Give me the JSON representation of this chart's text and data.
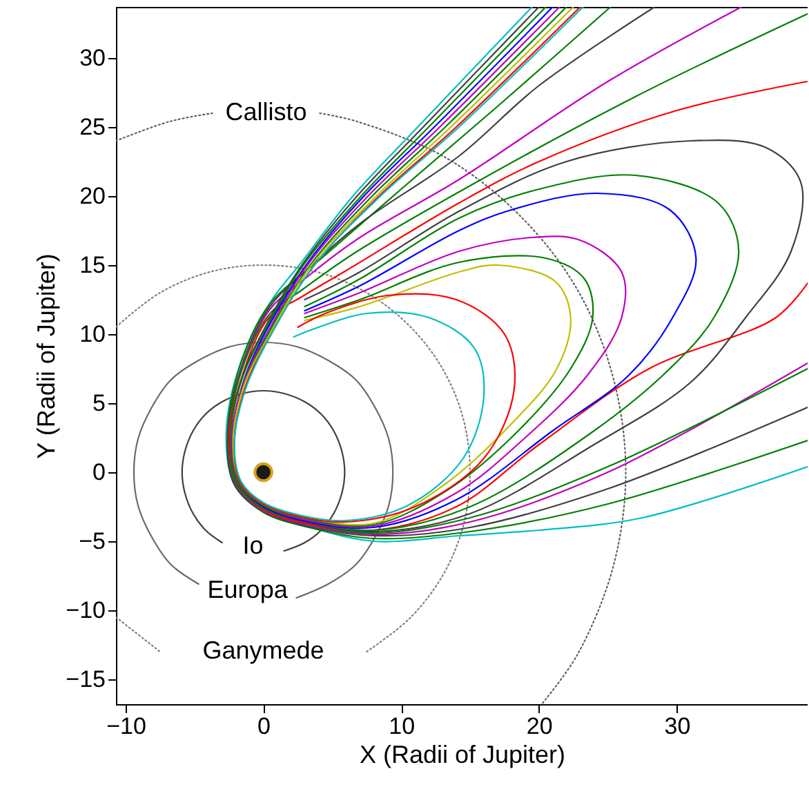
{
  "chart_data": {
    "type": "line",
    "xlabel": "X (Radii of Jupiter)",
    "ylabel": "Y (Radii of Jupiter)",
    "xlim": [
      -10.7,
      39.5
    ],
    "ylim": [
      -16.8,
      33.7
    ],
    "xticks": [
      -10,
      0,
      10,
      20,
      30
    ],
    "yticks": [
      -15,
      -10,
      -5,
      0,
      5,
      10,
      15,
      20,
      25,
      30
    ],
    "grid": false,
    "series": [
      {
        "name": "Io",
        "color": "#404040",
        "x": [
          1.5,
          3,
          4.2,
          5.1,
          5.7,
          5.9,
          5.7,
          5.1,
          4.2,
          3,
          1.5,
          0,
          -1.5,
          -3,
          -4.2,
          -5.1,
          -5.7,
          -5.9,
          -5.7,
          -5.1,
          -4.2,
          -3
        ],
        "values": [
          -5.7,
          -5.1,
          -4.2,
          -3,
          -1.5,
          0,
          1.5,
          3,
          4.2,
          5.1,
          5.7,
          5.9,
          5.7,
          5.1,
          4.2,
          3,
          1.5,
          0,
          -1.5,
          -3,
          -4.2,
          -5.1
        ]
      },
      {
        "name": "Europa",
        "color": "#6a6a6a",
        "x": [
          2.4,
          4.7,
          6.7,
          8.1,
          9.1,
          9.4,
          9.1,
          8.1,
          6.7,
          4.7,
          2.4,
          0,
          -2.4,
          -4.7,
          -6.7,
          -8.1,
          -9.1,
          -9.4,
          -9.1,
          -8.1,
          -6.7,
          -4.7
        ],
        "values": [
          -9.1,
          -8.1,
          -6.7,
          -4.7,
          -2.4,
          0,
          2.4,
          4.7,
          6.7,
          8.1,
          9.1,
          9.4,
          9.1,
          8.1,
          6.7,
          4.7,
          2.4,
          0,
          -2.4,
          -4.7,
          -6.7,
          -8.1
        ]
      },
      {
        "name": "Ganymede",
        "color": "#808080",
        "line_style": "dotted",
        "x": [
          -10.7,
          -7.5,
          null,
          7.5,
          10.6,
          13,
          14.5,
          15,
          14.5,
          13,
          10.6,
          7.5,
          3.9,
          0,
          -3.9,
          -7.5,
          -10.6,
          -10.7
        ],
        "values": [
          -10.5,
          -13,
          null,
          -13,
          -10.6,
          -7.5,
          -3.9,
          0,
          3.9,
          7.5,
          10.6,
          13,
          14.5,
          15,
          14.5,
          13,
          10.6,
          10.5
        ]
      },
      {
        "name": "Callisto",
        "color": "#606060",
        "line_style": "dotted",
        "x": [
          -10.7,
          -6.8,
          -3.7,
          null,
          4.1,
          6.8,
          13.2,
          18.6,
          22.8,
          25.4,
          26.3,
          25.4,
          22.8,
          20.2
        ],
        "values": [
          24,
          25.4,
          26,
          null,
          26,
          25.4,
          22.8,
          18.6,
          13.2,
          6.8,
          0,
          -6.8,
          -13.2,
          -16.8
        ]
      },
      {
        "color": "#00bfbf",
        "x": [
          19.5,
          11.2,
          6.5,
          2.6,
          0.5,
          -1.7,
          -2.7,
          -2.1,
          0,
          3.4,
          8,
          14.2,
          20,
          27.5,
          39.5
        ],
        "values": [
          33.7,
          25,
          20,
          15,
          12.3,
          7.8,
          2.8,
          -0.9,
          -2.9,
          -4,
          -5,
          -4.6,
          -4.2,
          -3.3,
          0.4
        ]
      },
      {
        "color": "#008000",
        "x": [
          25.2,
          17,
          10,
          4,
          0.4,
          -1.7,
          -2.6,
          -2.1,
          0,
          3.3,
          8,
          15,
          25,
          39.5
        ],
        "values": [
          33.7,
          26.5,
          20.5,
          15.3,
          12.1,
          7.7,
          2.8,
          -0.9,
          -2.9,
          -4,
          -4.8,
          -4.3,
          -2.3,
          2.3
        ]
      },
      {
        "color": "#404040",
        "x": [
          28.4,
          20,
          14.2,
          7,
          3,
          0.4,
          -1.6,
          -2.6,
          -2.1,
          0,
          3.2,
          8,
          15,
          25,
          39.5
        ],
        "values": [
          33.7,
          28,
          22.9,
          18,
          14.5,
          11.9,
          7.6,
          2.7,
          -0.9,
          -2.8,
          -3.9,
          -4.6,
          -4,
          -1.2,
          4.7
        ]
      },
      {
        "color": "#bf00bf",
        "x": [
          34.7,
          25,
          14.2,
          7,
          3,
          0.4,
          -1.6,
          -2.5,
          -2,
          0,
          3.2,
          8,
          15,
          25,
          39.5
        ],
        "values": [
          33.7,
          28.3,
          21.2,
          17,
          14,
          11.7,
          7.4,
          2.7,
          -0.9,
          -2.8,
          -3.8,
          -4.5,
          -3.6,
          0,
          7.9
        ]
      },
      {
        "color": "#008000",
        "x": [
          39.5,
          27,
          14.2,
          6.5,
          2.8,
          0.4,
          -1.6,
          -2.5,
          -2,
          0,
          3.1,
          8,
          15,
          25,
          39.5
        ],
        "values": [
          33.2,
          27.2,
          20.3,
          15.8,
          13.2,
          11.4,
          7.3,
          2.6,
          -0.8,
          -2.7,
          -3.7,
          -4.4,
          -3.3,
          0.4,
          7.5
        ]
      },
      {
        "color": "#ff0000",
        "x": [
          39.5,
          30,
          20,
          14.2,
          6,
          2.6,
          0.4,
          -1.5,
          -2.5,
          -1.9,
          0,
          3.1,
          8,
          14,
          20,
          28,
          37.2,
          39.5
        ],
        "values": [
          28.3,
          26.2,
          22.5,
          19.5,
          14.6,
          12.6,
          11.2,
          7.1,
          2.6,
          -0.8,
          -2.7,
          -3.7,
          -4.2,
          -2.5,
          2,
          7.5,
          11.2,
          13.7
        ]
      },
      {
        "color": "#404040",
        "x": [
          20,
          11.6,
          6.8,
          2.8,
          0.4,
          -1.5,
          -2.4,
          -1.9,
          0,
          3,
          8,
          15,
          24,
          31,
          35,
          38.3,
          39,
          36.5,
          31,
          22,
          14.2,
          7,
          3
        ],
        "values": [
          33.7,
          25,
          20,
          15,
          11,
          7,
          2.5,
          -0.8,
          -2.6,
          -3.6,
          -4.3,
          -3,
          2,
          6.5,
          11.2,
          16,
          21,
          23.5,
          24,
          22.5,
          18.9,
          14.5,
          12.5
        ]
      },
      {
        "color": "#008000",
        "x": [
          20.5,
          12,
          7.1,
          2.9,
          0.4,
          -1.5,
          -2.4,
          -1.9,
          0,
          2.9,
          8,
          15,
          24,
          29.5,
          32.7,
          34.5,
          33,
          27,
          20,
          14.2,
          7,
          3
        ],
        "values": [
          33.7,
          25,
          20,
          15,
          10.8,
          6.9,
          2.5,
          -0.8,
          -2.6,
          -3.5,
          -4.2,
          -2.5,
          3,
          7.5,
          11.2,
          16,
          19.5,
          21.5,
          20.5,
          18.4,
          14,
          12
        ]
      },
      {
        "color": "#0000ff",
        "x": [
          21,
          12.4,
          7.3,
          3.1,
          0.4,
          -1.4,
          -2.3,
          -1.8,
          0,
          2.9,
          8,
          14,
          21,
          26.5,
          29.7,
          31.4,
          29.5,
          24.2,
          18,
          14.2,
          7,
          3
        ],
        "values": [
          33.7,
          25,
          20,
          15,
          10.6,
          6.7,
          2.4,
          -0.8,
          -2.5,
          -3.5,
          -4,
          -2,
          3,
          7,
          11.2,
          15.5,
          19,
          20.2,
          19,
          17.5,
          13.5,
          11.7
        ]
      },
      {
        "color": "#bf00bf",
        "x": [
          21.5,
          12.8,
          7.6,
          3.2,
          0.4,
          -1.4,
          -2.3,
          -1.8,
          0,
          2.8,
          8,
          14,
          19,
          23.5,
          26,
          26,
          23,
          19.5,
          14.2,
          7,
          3
        ],
        "values": [
          33.7,
          25,
          20,
          15,
          10.3,
          6.6,
          2.4,
          -0.8,
          -2.4,
          -3.4,
          -3.9,
          -1.5,
          2.5,
          7,
          11.2,
          14.5,
          16.8,
          17,
          16,
          13,
          11.5
        ]
      },
      {
        "color": "#008000",
        "x": [
          22,
          13.2,
          7.9,
          3.4,
          0.4,
          -1.4,
          -2.2,
          -1.8,
          0,
          2.8,
          8,
          13.5,
          18.5,
          22.3,
          23.9,
          23.3,
          20.5,
          14.2,
          7,
          3
        ],
        "values": [
          33.7,
          25,
          20,
          15,
          10.1,
          6.4,
          2.3,
          -0.7,
          -2.4,
          -3.3,
          -3.8,
          -1.2,
          3,
          7.5,
          11.2,
          14,
          15.5,
          15.2,
          12.5,
          11.2
        ]
      },
      {
        "color": "#bfbf00",
        "x": [
          22.5,
          13.6,
          8.2,
          3.5,
          0.4,
          -1.4,
          -2.2,
          -1.7,
          0,
          2.7,
          8,
          13,
          18,
          21.3,
          22.3,
          21.2,
          17,
          14.2,
          7,
          3
        ],
        "values": [
          33.7,
          25,
          20,
          15,
          9.9,
          6.3,
          2.3,
          -0.7,
          -2.3,
          -3.2,
          -3.7,
          -1,
          3.5,
          7.5,
          11.2,
          13.8,
          15,
          14.5,
          12,
          11
        ]
      },
      {
        "color": "#ff0000",
        "x": [
          23,
          14,
          8.4,
          3.7,
          0.4,
          -1.3,
          -2.1,
          -1.7,
          0,
          2.6,
          6,
          11,
          16,
          18.2,
          17.5,
          14,
          9,
          4.5,
          2.5
        ],
        "values": [
          33.7,
          25,
          20,
          15,
          9.7,
          6.2,
          2.2,
          -0.7,
          -2.3,
          -3.2,
          -3.6,
          -2.5,
          1,
          6,
          10,
          12.5,
          12.8,
          11.5,
          10.5
        ]
      },
      {
        "color": "#00bfbf",
        "x": [
          23.2,
          14.2,
          8.5,
          3.7,
          0.3,
          -1.3,
          -2.1,
          -1.6,
          0,
          2.6,
          6,
          10.5,
          14.5,
          16,
          15.3,
          12,
          7.5,
          4,
          2.2
        ],
        "values": [
          33.7,
          25,
          20,
          15,
          9.5,
          6,
          2.2,
          -0.7,
          -2.2,
          -3.1,
          -3.5,
          -2.4,
          1,
          5.5,
          9,
          11.2,
          11.5,
          10.5,
          9.8
        ]
      },
      {
        "type": "scatter",
        "marker": "circle",
        "color": "#1a1a1a",
        "x": [
          0
        ],
        "values": [
          0
        ]
      }
    ]
  }
}
